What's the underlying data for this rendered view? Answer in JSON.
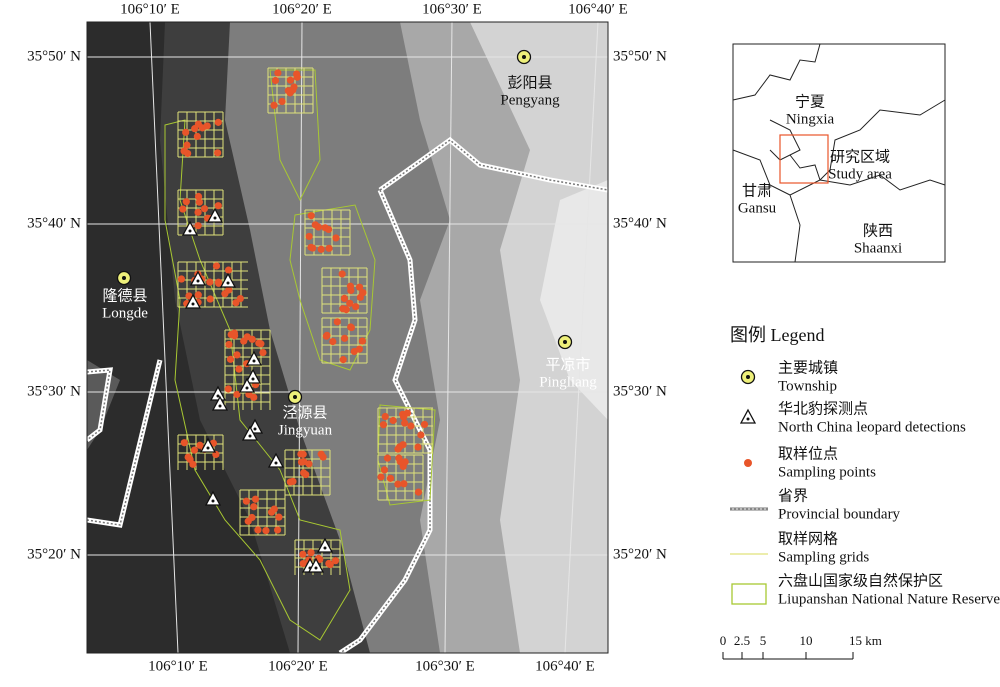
{
  "map": {
    "top_lon_labels": [
      "106°10′ E",
      "106°20′ E",
      "106°30′ E",
      "106°40′ E"
    ],
    "bottom_lon_labels": [
      "106°10′ E",
      "106°20′ E",
      "106°30′ E",
      "106°40′ E"
    ],
    "left_lat_labels": [
      "35°50′ N",
      "35°40′ N",
      "35°30′ N",
      "35°20′ N"
    ],
    "right_lat_labels": [
      "35°50′ N",
      "35°40′ N",
      "35°30′ N",
      "35°20′ N"
    ],
    "places": [
      {
        "cn": "彭阳县",
        "en": "Pengyang"
      },
      {
        "cn": "隆德县",
        "en": "Longde"
      },
      {
        "cn": "泾源县",
        "en": "Jingyuan"
      },
      {
        "cn": "平凉市",
        "en": "Pingliang"
      }
    ]
  },
  "inset": {
    "labels": [
      {
        "cn": "宁夏",
        "en": "Ningxia"
      },
      {
        "cn": "研究区域",
        "en": "Study area"
      },
      {
        "cn": "甘肃",
        "en": "Gansu"
      },
      {
        "cn": "陕西",
        "en": "Shaanxi"
      }
    ]
  },
  "legend": {
    "title": "图例 Legend",
    "items": [
      {
        "cn": "主要城镇",
        "en": "Township"
      },
      {
        "cn": "华北豹探测点",
        "en": "North China leopard detections"
      },
      {
        "cn": "取样位点",
        "en": "Sampling points"
      },
      {
        "cn": "省界",
        "en": "Provincial boundary"
      },
      {
        "cn": "取样网格",
        "en": "Sampling grids"
      },
      {
        "cn": "六盘山国家级自然保护区",
        "en": "Liupanshan National Nature Reserve"
      }
    ]
  },
  "scale_bar": {
    "ticks": [
      "0",
      "2.5",
      "5",
      "10",
      "15 km"
    ]
  }
}
